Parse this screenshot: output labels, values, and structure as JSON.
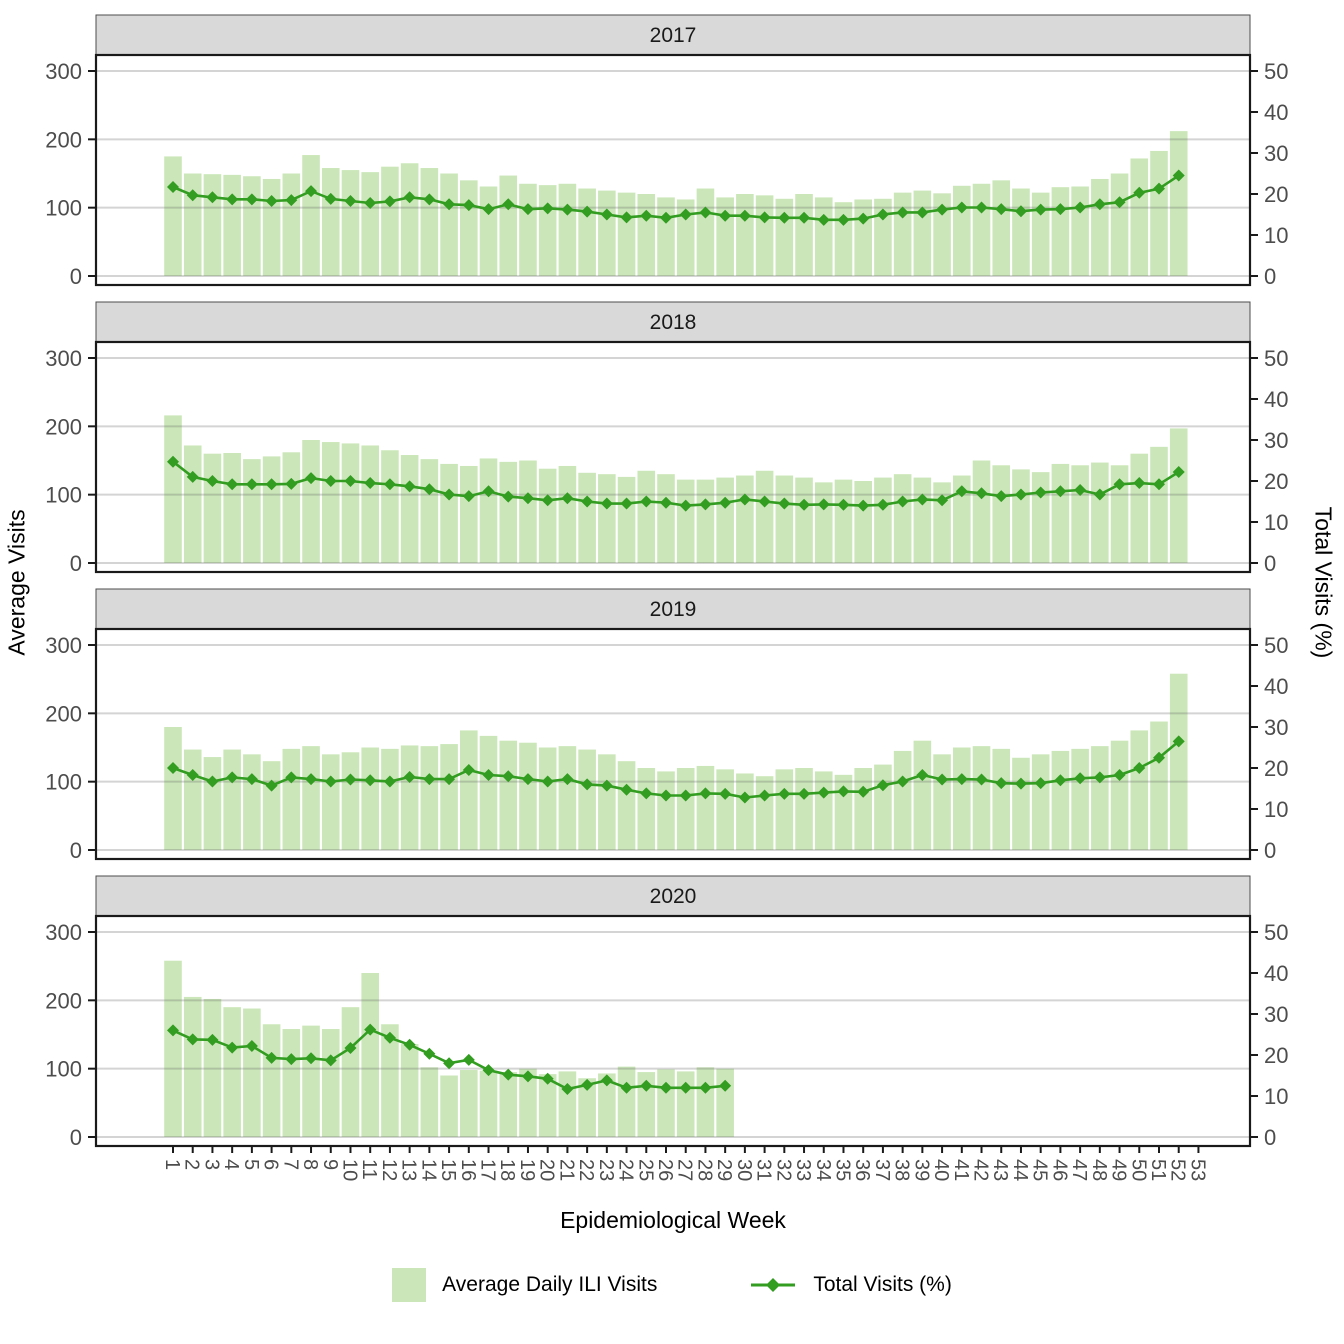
{
  "axes": {
    "x_title": "Epidemiological Week",
    "y_left_title": "Average Visits",
    "y_right_title": "Total Visits (%)"
  },
  "legend": {
    "items": [
      {
        "label": "Average Daily ILI Visits",
        "marker": "bar-swatch"
      },
      {
        "label": "Total Visits (%)",
        "marker": "line-marker"
      }
    ]
  },
  "chart_data": {
    "type": "bar",
    "combo": "bar+line, faceted by year (4 rows)",
    "title": "",
    "xlabel": "Epidemiological Week",
    "ylabel_left": "Average Visits",
    "ylabel_right": "Total Visits (%)",
    "y_left": {
      "ticks": [
        0,
        100,
        200,
        300
      ],
      "lim": [
        0,
        300
      ]
    },
    "y_right": {
      "ticks": [
        0,
        10,
        20,
        30,
        40,
        50
      ],
      "lim": [
        0,
        50
      ]
    },
    "x_ticks": [
      1,
      2,
      3,
      4,
      5,
      6,
      7,
      8,
      9,
      10,
      11,
      12,
      13,
      14,
      15,
      16,
      17,
      18,
      19,
      20,
      21,
      22,
      23,
      24,
      25,
      26,
      27,
      28,
      29,
      30,
      31,
      32,
      33,
      34,
      35,
      36,
      37,
      38,
      39,
      40,
      41,
      42,
      43,
      44,
      45,
      46,
      47,
      48,
      49,
      50,
      51,
      52,
      53
    ],
    "grid": "horizontal major gridlines at left-axis breaks",
    "legend_position": "bottom",
    "series_names": [
      "Average Daily ILI Visits",
      "Total Visits (%)"
    ],
    "colors": {
      "bar_fill": "#cbe7b9",
      "line": "#329d20",
      "strip_bg": "#d9d9d9",
      "strip_border": "#4d4d4d",
      "grid": "#d9d9d9",
      "panel_border": "#1a1a1a",
      "axis_text": "#4d4d4d",
      "title_text": "#000000"
    },
    "facets": [
      {
        "title": "2017",
        "week_start": 1,
        "bar_values": [
          175,
          150,
          149,
          148,
          146,
          142,
          150,
          177,
          158,
          155,
          152,
          160,
          165,
          158,
          150,
          140,
          131,
          147,
          135,
          133,
          135,
          128,
          125,
          122,
          120,
          115,
          112,
          128,
          115,
          120,
          118,
          113,
          120,
          115,
          108,
          112,
          113,
          122,
          125,
          121,
          132,
          135,
          140,
          128,
          122,
          130,
          131,
          142,
          150,
          172,
          183,
          212
        ],
        "line_values_pct": [
          21.7,
          19.7,
          19.2,
          18.7,
          18.7,
          18.3,
          18.5,
          20.7,
          18.8,
          18.3,
          17.8,
          18.2,
          19.2,
          18.7,
          17.5,
          17.3,
          16.3,
          17.5,
          16.3,
          16.5,
          16.2,
          15.7,
          15.0,
          14.3,
          14.7,
          14.2,
          15.0,
          15.5,
          14.7,
          14.7,
          14.3,
          14.2,
          14.2,
          13.7,
          13.7,
          14.0,
          15.0,
          15.5,
          15.5,
          16.2,
          16.7,
          16.7,
          16.3,
          15.8,
          16.2,
          16.3,
          16.7,
          17.5,
          18.0,
          20.3,
          21.3,
          24.5
        ]
      },
      {
        "title": "2018",
        "week_start": 1,
        "bar_values": [
          216,
          172,
          160,
          161,
          152,
          156,
          162,
          180,
          177,
          175,
          172,
          165,
          158,
          152,
          145,
          142,
          153,
          148,
          150,
          138,
          142,
          132,
          130,
          126,
          135,
          130,
          122,
          122,
          125,
          128,
          135,
          128,
          125,
          118,
          122,
          120,
          125,
          130,
          125,
          118,
          128,
          150,
          143,
          137,
          133,
          145,
          143,
          147,
          143,
          160,
          170,
          197
        ],
        "line_values_pct": [
          24.7,
          21.0,
          20.0,
          19.2,
          19.2,
          19.2,
          19.3,
          20.7,
          20.0,
          20.0,
          19.5,
          19.2,
          18.7,
          18.0,
          16.7,
          16.3,
          17.5,
          16.2,
          15.8,
          15.3,
          15.8,
          15.0,
          14.5,
          14.5,
          15.0,
          14.7,
          14.0,
          14.3,
          14.7,
          15.5,
          15.0,
          14.5,
          14.2,
          14.3,
          14.2,
          14.0,
          14.2,
          15.0,
          15.5,
          15.3,
          17.5,
          17.0,
          16.3,
          16.7,
          17.2,
          17.5,
          17.8,
          16.7,
          19.2,
          19.5,
          19.2,
          22.2
        ]
      },
      {
        "title": "2019",
        "week_start": 1,
        "bar_values": [
          180,
          147,
          136,
          147,
          140,
          130,
          148,
          152,
          140,
          143,
          150,
          148,
          153,
          152,
          155,
          175,
          167,
          160,
          157,
          150,
          152,
          147,
          140,
          130,
          120,
          115,
          120,
          123,
          118,
          112,
          108,
          118,
          120,
          115,
          110,
          120,
          125,
          145,
          160,
          140,
          150,
          152,
          148,
          135,
          140,
          145,
          148,
          152,
          160,
          175,
          188,
          258
        ],
        "line_values_pct": [
          20.0,
          18.3,
          16.7,
          17.7,
          17.3,
          15.7,
          17.7,
          17.3,
          16.7,
          17.2,
          17.0,
          16.7,
          17.8,
          17.3,
          17.3,
          19.5,
          18.3,
          18.0,
          17.3,
          16.7,
          17.3,
          16.0,
          15.7,
          14.7,
          13.8,
          13.3,
          13.3,
          13.8,
          13.7,
          12.8,
          13.3,
          13.7,
          13.7,
          14.0,
          14.3,
          14.2,
          15.8,
          16.7,
          18.3,
          17.2,
          17.3,
          17.2,
          16.3,
          16.2,
          16.3,
          17.0,
          17.5,
          17.7,
          18.3,
          20.0,
          22.5,
          26.5
        ]
      },
      {
        "title": "2020",
        "week_start": 1,
        "bar_values": [
          258,
          205,
          202,
          190,
          188,
          165,
          158,
          163,
          158,
          190,
          240,
          165,
          136,
          102,
          90,
          98,
          97,
          95,
          100,
          92,
          96,
          86,
          93,
          103,
          95,
          99,
          96,
          102,
          100
        ],
        "line_values_pct": [
          26.0,
          23.8,
          23.7,
          21.8,
          22.2,
          19.3,
          19.0,
          19.2,
          18.7,
          21.7,
          26.2,
          24.2,
          22.5,
          20.3,
          18.0,
          18.8,
          16.3,
          15.2,
          14.8,
          14.2,
          11.7,
          12.7,
          13.8,
          12.0,
          12.5,
          12.0,
          12.0,
          12.0,
          12.5
        ]
      }
    ]
  }
}
